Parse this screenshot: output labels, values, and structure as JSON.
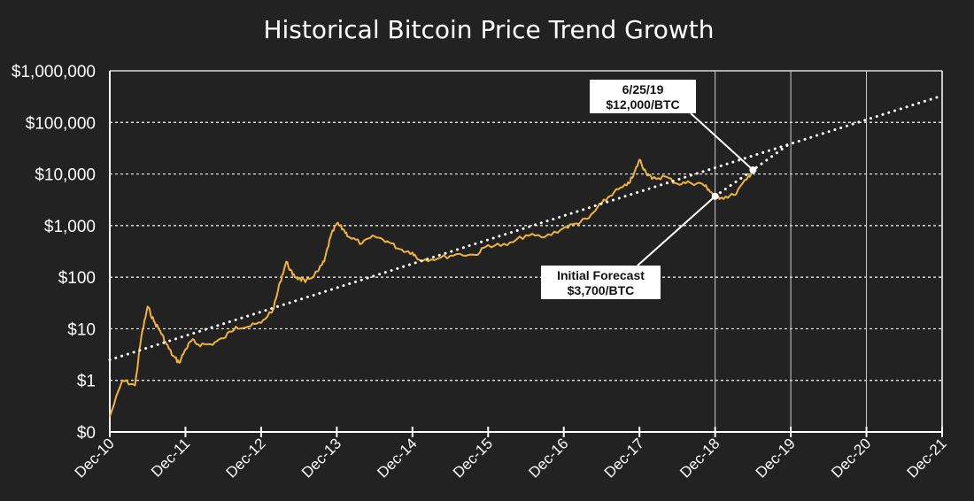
{
  "chart_data": {
    "type": "line",
    "title": "Historical Bitcoin Price Trend Growth",
    "xlabel": "",
    "ylabel": "",
    "y_scale": "log",
    "ylim": [
      0.1,
      1000000
    ],
    "xlim": [
      "Dec-10",
      "Dec-21"
    ],
    "grid": true,
    "background_color": "#222222",
    "line_color": "#f0b33a",
    "trend_color": "#ffffff",
    "gridline_color": "#ffffff",
    "x_tick_labels": [
      "Dec-10",
      "Dec-11",
      "Dec-12",
      "Dec-13",
      "Dec-14",
      "Dec-15",
      "Dec-16",
      "Dec-17",
      "Dec-18",
      "Dec-19",
      "Dec-20",
      "Dec-21"
    ],
    "y_ticks": [
      {
        "label": "$1,000,000",
        "value": 1000000
      },
      {
        "label": "$100,000",
        "value": 100000
      },
      {
        "label": "$10,000",
        "value": 10000
      },
      {
        "label": "$1,000",
        "value": 1000
      },
      {
        "label": "$100",
        "value": 100
      },
      {
        "label": "$10",
        "value": 10
      },
      {
        "label": "$1",
        "value": 1
      },
      {
        "label": "$0",
        "value": 0.1
      }
    ],
    "series": [
      {
        "style": "price-line",
        "points": [
          [
            "2010-12",
            0.2
          ],
          [
            "2011-02",
            1.0
          ],
          [
            "2011-04",
            0.8
          ],
          [
            "2011-05",
            7
          ],
          [
            "2011-06",
            27
          ],
          [
            "2011-07",
            14
          ],
          [
            "2011-08",
            9
          ],
          [
            "2011-09",
            5
          ],
          [
            "2011-10",
            3
          ],
          [
            "2011-11",
            2.2
          ],
          [
            "2011-12",
            4
          ],
          [
            "2012-01",
            6
          ],
          [
            "2012-02",
            5
          ],
          [
            "2012-04",
            5
          ],
          [
            "2012-06",
            6.5
          ],
          [
            "2012-08",
            11
          ],
          [
            "2012-10",
            11
          ],
          [
            "2012-12",
            13
          ],
          [
            "2013-02",
            25
          ],
          [
            "2013-03",
            80
          ],
          [
            "2013-04",
            200
          ],
          [
            "2013-05",
            110
          ],
          [
            "2013-06",
            95
          ],
          [
            "2013-07",
            80
          ],
          [
            "2013-09",
            130
          ],
          [
            "2013-10",
            200
          ],
          [
            "2013-11",
            600
          ],
          [
            "2013-12",
            1100
          ],
          [
            "2014-01",
            850
          ],
          [
            "2014-02",
            600
          ],
          [
            "2014-04",
            450
          ],
          [
            "2014-06",
            620
          ],
          [
            "2014-08",
            500
          ],
          [
            "2014-10",
            350
          ],
          [
            "2014-12",
            300
          ],
          [
            "2015-01",
            220
          ],
          [
            "2015-04",
            230
          ],
          [
            "2015-07",
            280
          ],
          [
            "2015-10",
            270
          ],
          [
            "2015-12",
            420
          ],
          [
            "2016-03",
            415
          ],
          [
            "2016-06",
            650
          ],
          [
            "2016-09",
            600
          ],
          [
            "2016-12",
            900
          ],
          [
            "2017-02",
            1100
          ],
          [
            "2017-04",
            1400
          ],
          [
            "2017-06",
            2700
          ],
          [
            "2017-08",
            4500
          ],
          [
            "2017-10",
            6000
          ],
          [
            "2017-11",
            9000
          ],
          [
            "2017-12",
            19000
          ],
          [
            "2018-01",
            11000
          ],
          [
            "2018-02",
            8000
          ],
          [
            "2018-04",
            9000
          ],
          [
            "2018-06",
            6500
          ],
          [
            "2018-08",
            6800
          ],
          [
            "2018-10",
            6400
          ],
          [
            "2018-11",
            5000
          ],
          [
            "2018-12",
            3700
          ],
          [
            "2019-01",
            3500
          ],
          [
            "2019-03",
            3900
          ],
          [
            "2019-05",
            7800
          ],
          [
            "2019-06",
            12000
          ]
        ]
      },
      {
        "style": "trend-dotted",
        "points": [
          [
            "2010-12",
            2.5
          ],
          [
            "2021-12",
            330000
          ]
        ]
      },
      {
        "style": "forecast-dotted",
        "points": [
          [
            "2018-12",
            3700
          ],
          [
            "2019-06",
            12000
          ],
          [
            "2019-12",
            40000
          ]
        ]
      }
    ],
    "annotations": [
      {
        "line1": "6/25/19",
        "line2": "$12,000/BTC",
        "at": [
          "2019-06",
          12000
        ]
      },
      {
        "line1": "Initial Forecast",
        "line2": "$3,700/BTC",
        "at": [
          "2018-12",
          3700
        ]
      }
    ]
  }
}
